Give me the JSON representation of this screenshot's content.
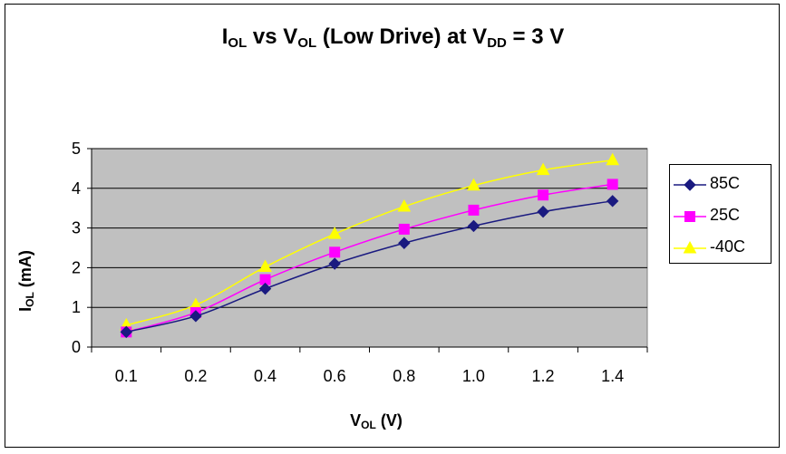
{
  "chart_data": {
    "type": "line",
    "title": {
      "part1": "I",
      "sub1": "OL",
      "part2": " vs V",
      "sub2": "OL",
      "part3": " (Low Drive) at V",
      "sub3": "DD",
      "part4": " = 3 V"
    },
    "ylabel": {
      "main": "I",
      "sub": "OL",
      "rest": " (mA)"
    },
    "xlabel": {
      "main": "V",
      "sub": "OL",
      "rest": " (V)"
    },
    "categories": [
      "0.1",
      "0.2",
      "0.4",
      "0.6",
      "0.8",
      "1.0",
      "1.2",
      "1.4"
    ],
    "ylim": [
      0,
      5
    ],
    "yticks": [
      "0",
      "1",
      "2",
      "3",
      "4",
      "5"
    ],
    "grid": true,
    "legend_position": "right",
    "series": [
      {
        "name": "85C",
        "color": "#1a1a80",
        "marker": "diamond",
        "values": [
          0.38,
          0.78,
          1.47,
          2.1,
          2.62,
          3.05,
          3.41,
          3.68
        ]
      },
      {
        "name": "25C",
        "color": "#ff00ff",
        "marker": "square",
        "values": [
          0.38,
          0.87,
          1.7,
          2.39,
          2.97,
          3.45,
          3.83,
          4.1
        ]
      },
      {
        "name": "-40C",
        "color": "#ffff00",
        "marker": "triangle",
        "values": [
          0.55,
          1.06,
          2.02,
          2.85,
          3.54,
          4.07,
          4.46,
          4.71
        ]
      }
    ]
  }
}
